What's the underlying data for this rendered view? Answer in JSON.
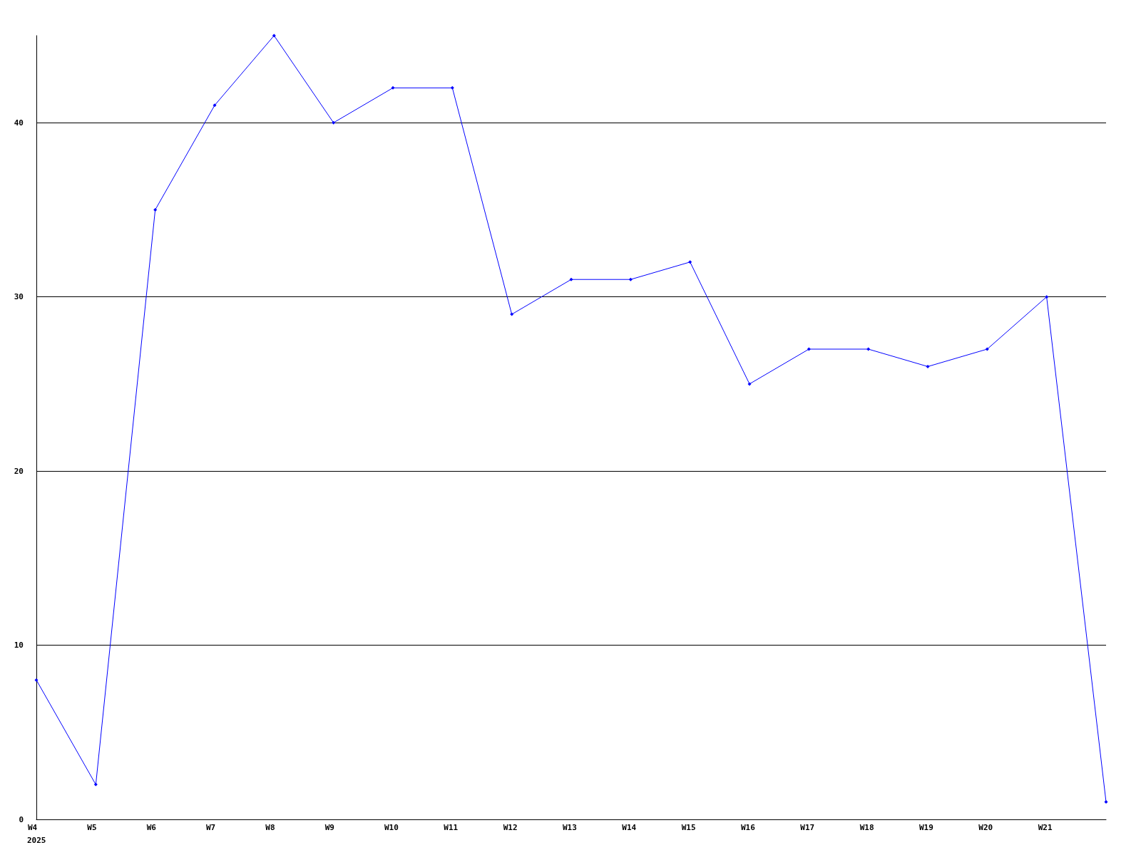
{
  "chart_data": {
    "type": "line",
    "categories": [
      "W4",
      "W5",
      "W6",
      "W7",
      "W8",
      "W9",
      "W10",
      "W11",
      "W12",
      "W13",
      "W14",
      "W15",
      "W16",
      "W17",
      "W18",
      "W19",
      "W20",
      "W21",
      null
    ],
    "series": [
      {
        "color": "#0000ff",
        "values": [
          8,
          2,
          35,
          41,
          45,
          40,
          42,
          42,
          29,
          31,
          31,
          32,
          25,
          27,
          27,
          26,
          27,
          30,
          1
        ]
      }
    ],
    "ylim": [
      0,
      45
    ],
    "yticks": [
      0,
      10,
      20,
      30,
      40
    ],
    "grid": "y",
    "marker": "diamond",
    "line_style": "solid",
    "annotations": [
      "2025"
    ]
  }
}
